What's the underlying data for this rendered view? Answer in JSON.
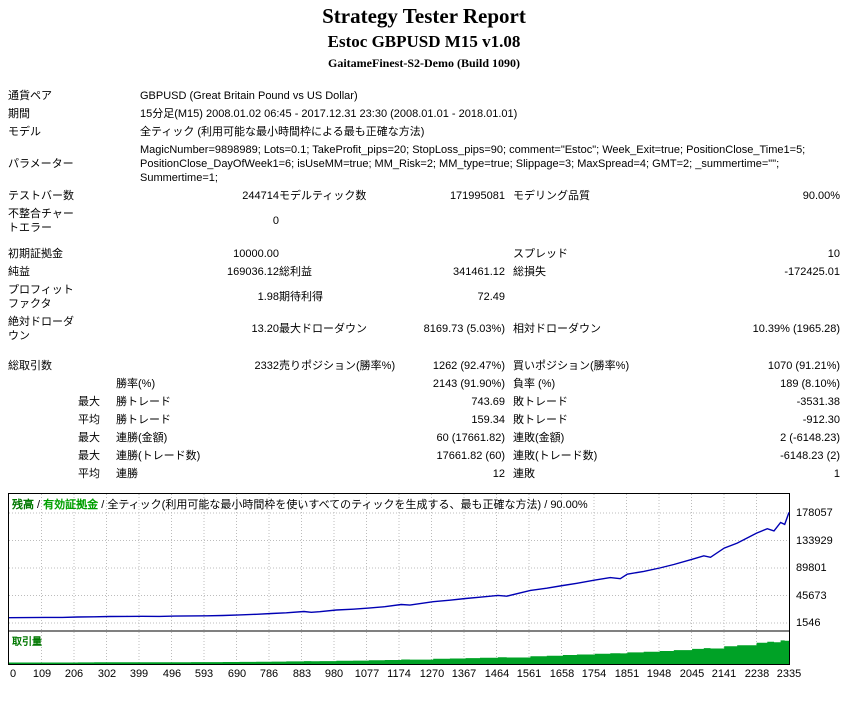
{
  "header": {
    "title": "Strategy Tester Report",
    "subtitle": "Estoc GBPUSD M15 v1.08",
    "build": "GaitameFinest-S2-Demo (Build 1090)"
  },
  "table": {
    "symbol_label": "通貨ペア",
    "symbol_value": "GBPUSD (Great Britain Pound vs US Dollar)",
    "period_label": "期間",
    "period_value": "15分足(M15) 2008.01.02 06:45 - 2017.12.31 23:30 (2008.01.01 - 2018.01.01)",
    "model_label": "モデル",
    "model_value": "全ティック (利用可能な最小時間枠による最も正確な方法)",
    "parameters_label": "パラメーター",
    "parameters_value": "MagicNumber=9898989; Lots=0.1; TakeProfit_pips=20; StopLoss_pips=90; comment=\"Estoc\"; Week_Exit=true; PositionClose_Time1=5; PositionClose_DayOfWeek1=6; isUseMM=true; MM_Risk=2; MM_type=true; Slippage=3; MaxSpread=4; GMT=2; _summertime=\"\"; Summertime=1;",
    "bars_label": "テストバー数",
    "bars_value": "244714",
    "ticks_label": "モデルティック数",
    "ticks_value": "171995081",
    "quality_label": "モデリング品質",
    "quality_value": "90.00%",
    "mismatch_label": "不整合チャートエラー",
    "mismatch_value": "0",
    "deposit_label": "初期証拠金",
    "deposit_value": "10000.00",
    "spread_label": "スプレッド",
    "spread_value": "10",
    "net_label": "純益",
    "net_value": "169036.12",
    "gross_profit_label": "総利益",
    "gross_profit_value": "341461.12",
    "gross_loss_label": "総損失",
    "gross_loss_value": "-172425.01",
    "pf_label": "プロフィットファクタ",
    "pf_value": "1.98",
    "payoff_label": "期待利得",
    "payoff_value": "72.49",
    "abs_dd_label": "絶対ドローダウン",
    "abs_dd_value": "13.20",
    "max_dd_label": "最大ドローダウン",
    "max_dd_value": "8169.73 (5.03%)",
    "rel_dd_label": "相対ドローダウン",
    "rel_dd_value": "10.39% (1965.28)",
    "total_trades_label": "総取引数",
    "total_trades_value": "2332",
    "short_label": "売りポジション(勝率%)",
    "short_value": "1262 (92.47%)",
    "long_label": "買いポジション(勝率%)",
    "long_value": "1070 (91.21%)",
    "profit_trades_label": "勝率(%)",
    "profit_trades_value": "2143 (91.90%)",
    "loss_trades_label": "負率 (%)",
    "loss_trades_value": "189 (8.10%)",
    "max_label": "最大",
    "avg_label": "平均",
    "win_trade_label": "勝トレード",
    "lose_trade_label": "敗トレード",
    "largest_win_value": "743.69",
    "largest_loss_value": "-3531.38",
    "avg_win_value": "159.34",
    "avg_loss_value": "-912.30",
    "consec_wins_money_label": "連勝(金額)",
    "consec_wins_money_value": "60 (17661.82)",
    "consec_losses_money_label": "連敗(金額)",
    "consec_losses_money_value": "2 (-6148.23)",
    "consec_profit_count_label": "連勝(トレード数)",
    "consec_profit_count_value": "17661.82 (60)",
    "consec_loss_count_label": "連敗(トレード数)",
    "consec_loss_count_value": "-6148.23 (2)",
    "avg_consec_wins_label": "連勝",
    "avg_consec_wins_value": "12",
    "avg_consec_losses_label": "連敗",
    "avg_consec_losses_value": "1"
  },
  "chart_data": {
    "type": "line",
    "caption": {
      "balance": "残高",
      "equity": "有効証拠金",
      "model": "全ティック(利用可能な最小時間枠を使いすべてのティックを生成する、最も正確な方法)",
      "quality": "90.00%",
      "sep": " / "
    },
    "volume_label": "取引量",
    "y_ticks": [
      178057,
      133929,
      89801,
      45673,
      1546
    ],
    "x_ticks": [
      0,
      109,
      206,
      302,
      399,
      496,
      593,
      690,
      786,
      883,
      980,
      1077,
      1174,
      1270,
      1367,
      1464,
      1561,
      1658,
      1754,
      1851,
      1948,
      2045,
      2141,
      2238,
      2335
    ],
    "x_max": 2335,
    "xlabel": "",
    "ylabel": "",
    "legend_position": "top-left",
    "y_axis_position": "right",
    "grid": true,
    "colors": {
      "balance": "#0000b4",
      "grid": "#bcbcbc",
      "volume": "#00a226",
      "border": "#000000"
    },
    "balance_series": [
      [
        0,
        10000
      ],
      [
        55,
        10250
      ],
      [
        109,
        10600
      ],
      [
        160,
        10500
      ],
      [
        206,
        11200
      ],
      [
        255,
        11500
      ],
      [
        302,
        11900
      ],
      [
        350,
        12200
      ],
      [
        399,
        12300
      ],
      [
        450,
        12150
      ],
      [
        496,
        12600
      ],
      [
        545,
        12900
      ],
      [
        593,
        13100
      ],
      [
        640,
        13600
      ],
      [
        690,
        14500
      ],
      [
        740,
        15500
      ],
      [
        786,
        16800
      ],
      [
        830,
        17900
      ],
      [
        883,
        20000
      ],
      [
        905,
        18700
      ],
      [
        930,
        19700
      ],
      [
        980,
        22400
      ],
      [
        1030,
        23700
      ],
      [
        1077,
        25400
      ],
      [
        1125,
        27700
      ],
      [
        1174,
        31300
      ],
      [
        1200,
        30300
      ],
      [
        1270,
        35800
      ],
      [
        1320,
        38100
      ],
      [
        1367,
        40900
      ],
      [
        1410,
        42900
      ],
      [
        1464,
        45900
      ],
      [
        1490,
        44500
      ],
      [
        1561,
        53800
      ],
      [
        1610,
        57400
      ],
      [
        1658,
        61800
      ],
      [
        1700,
        65300
      ],
      [
        1754,
        70400
      ],
      [
        1800,
        74400
      ],
      [
        1830,
        72700
      ],
      [
        1851,
        79800
      ],
      [
        1900,
        84400
      ],
      [
        1948,
        89800
      ],
      [
        1990,
        95400
      ],
      [
        2045,
        103800
      ],
      [
        2080,
        109400
      ],
      [
        2100,
        107000
      ],
      [
        2141,
        121800
      ],
      [
        2180,
        129800
      ],
      [
        2238,
        145800
      ],
      [
        2270,
        152800
      ],
      [
        2290,
        149400
      ],
      [
        2310,
        162800
      ],
      [
        2322,
        159800
      ],
      [
        2335,
        179036
      ]
    ],
    "volume_follows_balance": true
  }
}
